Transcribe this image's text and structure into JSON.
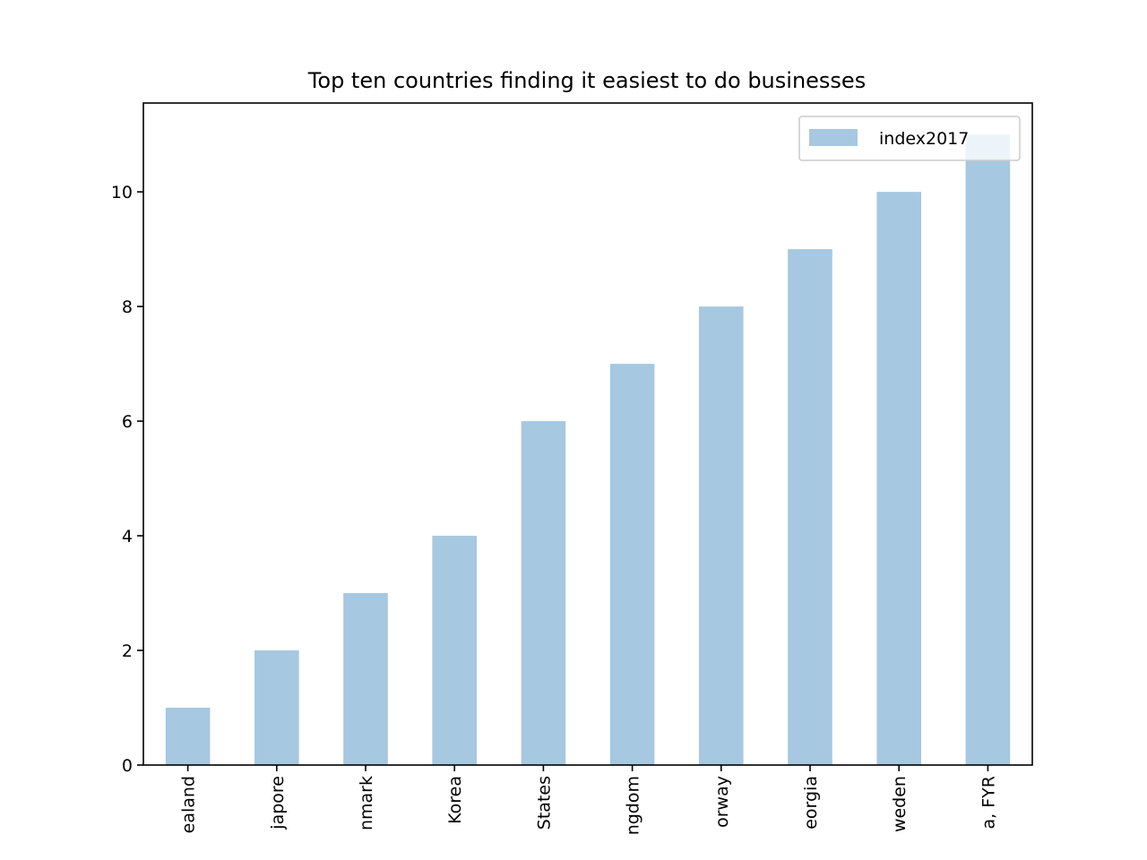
{
  "chart_data": {
    "type": "bar",
    "title": "Top ten countries finding it easiest to do businesses",
    "xlabel": "",
    "ylabel": "",
    "categories": [
      "ealand",
      "japore",
      "nmark",
      "Korea",
      "States",
      "ngdom",
      "orway",
      "eorgia",
      "weden",
      "a, FYR"
    ],
    "series": [
      {
        "name": "index2017",
        "values": [
          1,
          2,
          3,
          4,
          6,
          7,
          8,
          9,
          10,
          11
        ],
        "color": "#a6c8e0"
      }
    ],
    "ylim": [
      0,
      11.55
    ],
    "yticks": [
      0,
      2,
      4,
      6,
      8,
      10
    ],
    "ytick_labels": [
      "0",
      "2",
      "4",
      "6",
      "8",
      "10"
    ],
    "legend": "top-right",
    "grid": false
  }
}
